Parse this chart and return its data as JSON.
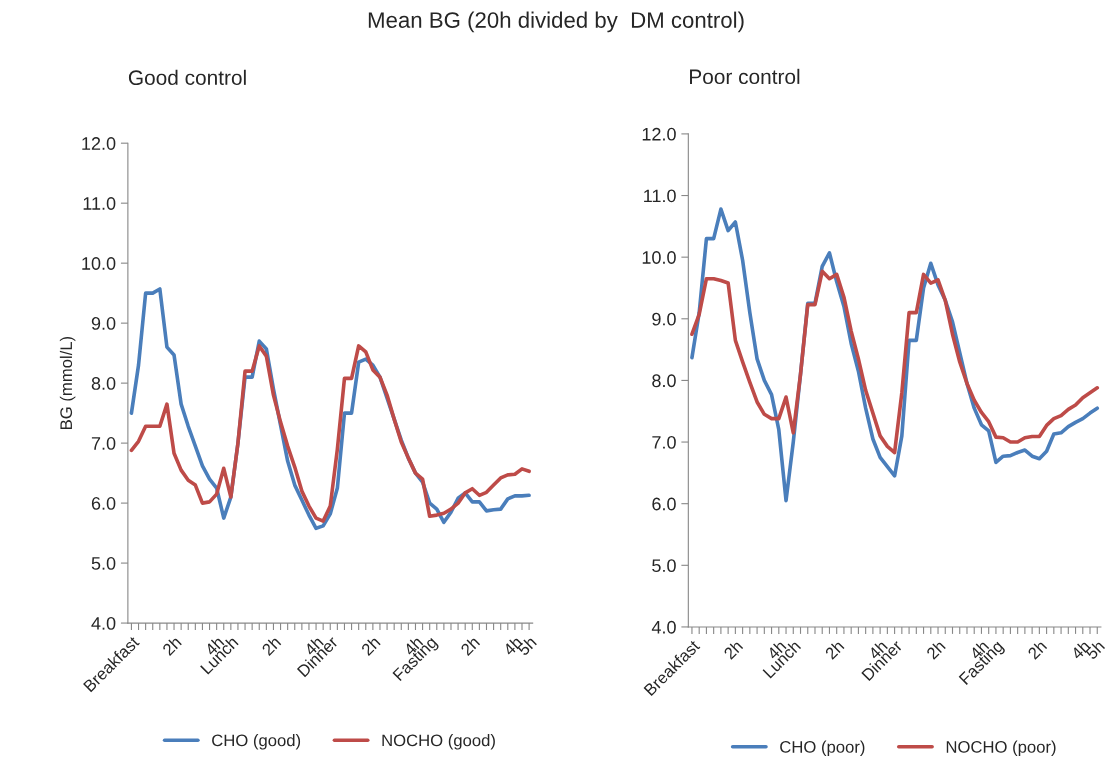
{
  "chart_data": [
    {
      "type": "line",
      "title": "Mean BG (20h divided by  DM control)",
      "subtitle": "Good control",
      "ylabel": "BG (mmol/L)",
      "categories": [
        "Breakfast",
        null,
        null,
        null,
        null,
        null,
        "2h",
        null,
        null,
        null,
        null,
        null,
        "4h",
        null,
        "Lunch",
        null,
        null,
        null,
        null,
        null,
        "2h",
        null,
        null,
        null,
        null,
        null,
        "4h",
        null,
        "Dinner",
        null,
        null,
        null,
        null,
        null,
        "2h",
        null,
        null,
        null,
        null,
        null,
        "4h",
        null,
        "Fasting",
        null,
        null,
        null,
        null,
        null,
        "2h",
        null,
        null,
        null,
        null,
        null,
        "4h",
        null,
        "5h"
      ],
      "series": [
        {
          "name": "CHO (good)",
          "color": "#4a7ebb",
          "values": [
            7.5,
            8.3,
            9.5,
            9.5,
            9.57,
            8.6,
            8.47,
            7.65,
            7.28,
            6.95,
            6.62,
            6.4,
            6.25,
            5.75,
            6.1,
            7.0,
            8.1,
            8.1,
            8.7,
            8.57,
            7.9,
            7.3,
            6.7,
            6.3,
            6.05,
            5.8,
            5.58,
            5.62,
            5.82,
            6.25,
            7.5,
            7.5,
            8.35,
            8.4,
            8.3,
            8.1,
            7.75,
            7.4,
            7.05,
            6.75,
            6.5,
            6.35,
            6.0,
            5.9,
            5.68,
            5.85,
            6.08,
            6.17,
            6.02,
            6.02,
            5.87,
            5.89,
            5.9,
            6.07,
            6.12,
            6.12,
            6.13
          ]
        },
        {
          "name": "NOCHO (good)",
          "color": "#be4b48",
          "values": [
            6.88,
            7.03,
            7.28,
            7.28,
            7.28,
            7.65,
            6.83,
            6.55,
            6.38,
            6.3,
            6.0,
            6.02,
            6.15,
            6.58,
            6.1,
            7.0,
            8.2,
            8.2,
            8.62,
            8.45,
            7.8,
            7.35,
            6.95,
            6.6,
            6.2,
            5.95,
            5.75,
            5.7,
            5.95,
            6.9,
            8.08,
            8.08,
            8.62,
            8.52,
            8.22,
            8.1,
            7.8,
            7.4,
            7.02,
            6.75,
            6.5,
            6.4,
            5.78,
            5.8,
            5.83,
            5.9,
            6.0,
            6.17,
            6.24,
            6.13,
            6.18,
            6.3,
            6.42,
            6.47,
            6.48,
            6.57,
            6.53
          ]
        }
      ],
      "ylim": [
        4,
        12
      ],
      "yticks": [
        {
          "value": 4,
          "label": "4.0"
        },
        {
          "value": 5,
          "label": "5.0"
        },
        {
          "value": 6,
          "label": "6.0"
        },
        {
          "value": 7,
          "label": "7.0"
        },
        {
          "value": 8,
          "label": "8.0"
        },
        {
          "value": 9,
          "label": "9.0"
        },
        {
          "value": 10,
          "label": "10.0"
        },
        {
          "value": 11,
          "label": "11.0"
        },
        {
          "value": 12,
          "label": "12.0"
        }
      ],
      "grid": false,
      "legend": "bottom",
      "marker": "none",
      "line_style": "solid"
    },
    {
      "type": "line",
      "subtitle": "Poor control",
      "categories": [
        "Breakfast",
        null,
        null,
        null,
        null,
        null,
        "2h",
        null,
        null,
        null,
        null,
        null,
        "4h",
        null,
        "Lunch",
        null,
        null,
        null,
        null,
        null,
        "2h",
        null,
        null,
        null,
        null,
        null,
        "4h",
        null,
        "Dinner",
        null,
        null,
        null,
        null,
        null,
        "2h",
        null,
        null,
        null,
        null,
        null,
        "4h",
        null,
        "Fasting",
        null,
        null,
        null,
        null,
        null,
        "2h",
        null,
        null,
        null,
        null,
        null,
        "4h",
        null,
        "5h"
      ],
      "series": [
        {
          "name": "CHO (poor)",
          "color": "#4a7ebb",
          "values": [
            8.37,
            9.1,
            10.3,
            10.3,
            10.78,
            10.43,
            10.57,
            9.95,
            9.1,
            8.35,
            8.0,
            7.77,
            7.2,
            6.05,
            7.0,
            8.1,
            9.25,
            9.25,
            9.85,
            10.07,
            9.6,
            9.2,
            8.6,
            8.15,
            7.55,
            7.05,
            6.75,
            6.6,
            6.45,
            7.1,
            8.65,
            8.65,
            9.5,
            9.9,
            9.55,
            9.3,
            8.95,
            8.45,
            7.95,
            7.55,
            7.28,
            7.18,
            6.67,
            6.77,
            6.78,
            6.83,
            6.87,
            6.77,
            6.73,
            6.85,
            7.13,
            7.15,
            7.25,
            7.32,
            7.38,
            7.47,
            7.55
          ]
        },
        {
          "name": "NOCHO (poor)",
          "color": "#be4b48",
          "values": [
            8.75,
            9.07,
            9.65,
            9.65,
            9.62,
            9.58,
            8.65,
            8.3,
            7.97,
            7.65,
            7.45,
            7.38,
            7.38,
            7.73,
            7.15,
            8.1,
            9.23,
            9.23,
            9.77,
            9.65,
            9.72,
            9.35,
            8.8,
            8.35,
            7.84,
            7.47,
            7.1,
            6.93,
            6.83,
            7.8,
            9.1,
            9.1,
            9.72,
            9.58,
            9.63,
            9.3,
            8.75,
            8.3,
            7.95,
            7.68,
            7.48,
            7.33,
            7.08,
            7.07,
            7.0,
            7.0,
            7.07,
            7.09,
            7.09,
            7.27,
            7.38,
            7.43,
            7.53,
            7.6,
            7.72,
            7.8,
            7.88
          ]
        }
      ],
      "ylim": [
        4,
        12
      ],
      "yticks": [
        {
          "value": 4,
          "label": "4.0"
        },
        {
          "value": 5,
          "label": "5.0"
        },
        {
          "value": 6,
          "label": "6.0"
        },
        {
          "value": 7,
          "label": "7.0"
        },
        {
          "value": 8,
          "label": "8.0"
        },
        {
          "value": 9,
          "label": "9.0"
        },
        {
          "value": 10,
          "label": "10.0"
        },
        {
          "value": 11,
          "label": "11.0"
        },
        {
          "value": 12,
          "label": "12.0"
        }
      ],
      "grid": false,
      "legend": "bottom",
      "marker": "none",
      "line_style": "solid"
    }
  ]
}
